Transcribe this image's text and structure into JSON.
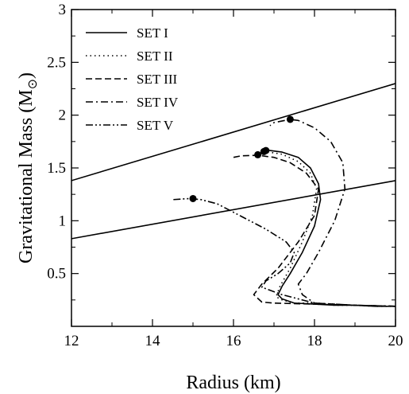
{
  "chart_data": {
    "type": "line",
    "xlabel": "Radius (km)",
    "ylabel_main": "Gravitational Mass (M",
    "ylabel_sub": "⊙",
    "ylabel_close": ")",
    "xlim": [
      12,
      20
    ],
    "ylim": [
      0,
      3
    ],
    "xticks": [
      12,
      14,
      16,
      18,
      20
    ],
    "yticks": [
      0.5,
      1,
      1.5,
      2,
      2.5,
      3
    ],
    "xtick_labels": [
      "12",
      "14",
      "16",
      "18",
      "20"
    ],
    "ytick_labels": [
      "0.5",
      "1",
      "1.5",
      "2",
      "2.5",
      "3"
    ],
    "legend_position": "top-left",
    "series": [
      {
        "name": "SET I",
        "style": "solid",
        "points": [
          [
            20.0,
            0.19
          ],
          [
            19.5,
            0.19
          ],
          [
            19.0,
            0.2
          ],
          [
            18.5,
            0.2
          ],
          [
            18.0,
            0.21
          ],
          [
            17.5,
            0.22
          ],
          [
            17.2,
            0.26
          ],
          [
            17.1,
            0.3
          ],
          [
            17.2,
            0.38
          ],
          [
            17.4,
            0.5
          ],
          [
            17.7,
            0.7
          ],
          [
            18.0,
            0.95
          ],
          [
            18.15,
            1.2
          ],
          [
            18.1,
            1.35
          ],
          [
            17.9,
            1.5
          ],
          [
            17.6,
            1.6
          ],
          [
            17.2,
            1.65
          ],
          [
            16.9,
            1.665
          ],
          [
            16.8,
            1.665
          ]
        ],
        "max_point": [
          16.8,
          1.665
        ]
      },
      {
        "name": "SET II",
        "style": "dotted",
        "points": [
          [
            20.0,
            0.19
          ],
          [
            19.5,
            0.19
          ],
          [
            19.0,
            0.2
          ],
          [
            18.5,
            0.2
          ],
          [
            18.0,
            0.22
          ],
          [
            17.5,
            0.22
          ],
          [
            17.2,
            0.25
          ],
          [
            17.05,
            0.28
          ],
          [
            17.15,
            0.38
          ],
          [
            17.4,
            0.55
          ],
          [
            17.7,
            0.8
          ],
          [
            17.95,
            1.05
          ],
          [
            18.05,
            1.3
          ],
          [
            17.9,
            1.45
          ],
          [
            17.6,
            1.56
          ],
          [
            17.2,
            1.63
          ],
          [
            16.8,
            1.655
          ],
          [
            16.75,
            1.655
          ]
        ],
        "max_point": [
          16.75,
          1.655
        ]
      },
      {
        "name": "SET III",
        "style": "dashed",
        "points": [
          [
            20.0,
            0.19
          ],
          [
            19.0,
            0.2
          ],
          [
            18.0,
            0.21
          ],
          [
            17.0,
            0.22
          ],
          [
            16.7,
            0.23
          ],
          [
            16.5,
            0.3
          ],
          [
            16.7,
            0.4
          ],
          [
            17.1,
            0.55
          ],
          [
            17.6,
            0.8
          ],
          [
            18.0,
            1.05
          ],
          [
            18.1,
            1.3
          ],
          [
            17.8,
            1.45
          ],
          [
            17.4,
            1.55
          ],
          [
            17.0,
            1.6
          ],
          [
            16.6,
            1.62
          ],
          [
            16.2,
            1.615
          ],
          [
            16.0,
            1.6
          ]
        ],
        "max_point": [
          16.6,
          1.625
        ]
      },
      {
        "name": "SET IV",
        "style": "dashdot",
        "points": [
          [
            20.0,
            0.19
          ],
          [
            19.0,
            0.2
          ],
          [
            18.0,
            0.22
          ],
          [
            17.7,
            0.3
          ],
          [
            17.6,
            0.4
          ],
          [
            17.8,
            0.5
          ],
          [
            18.1,
            0.7
          ],
          [
            18.5,
            1.0
          ],
          [
            18.75,
            1.3
          ],
          [
            18.7,
            1.55
          ],
          [
            18.4,
            1.75
          ],
          [
            18.0,
            1.88
          ],
          [
            17.6,
            1.95
          ],
          [
            17.4,
            1.96
          ],
          [
            17.0,
            1.93
          ],
          [
            16.9,
            1.9
          ]
        ],
        "max_point": [
          17.4,
          1.96
        ]
      },
      {
        "name": "SET V",
        "style": "dashdotdot",
        "points": [
          [
            20.0,
            0.19
          ],
          [
            19.0,
            0.2
          ],
          [
            18.0,
            0.22
          ],
          [
            17.2,
            0.3
          ],
          [
            16.7,
            0.37
          ],
          [
            16.8,
            0.43
          ],
          [
            17.1,
            0.5
          ],
          [
            17.4,
            0.6
          ],
          [
            17.5,
            0.7
          ],
          [
            17.3,
            0.8
          ],
          [
            16.8,
            0.92
          ],
          [
            16.2,
            1.04
          ],
          [
            15.6,
            1.16
          ],
          [
            15.2,
            1.2
          ],
          [
            14.9,
            1.21
          ],
          [
            14.5,
            1.2
          ]
        ],
        "max_point": [
          15.0,
          1.21
        ]
      }
    ],
    "reference_lines": [
      {
        "x1": 12,
        "y1": 1.38,
        "x2": 20,
        "y2": 2.3
      },
      {
        "x1": 12,
        "y1": 0.83,
        "x2": 20,
        "y2": 1.38
      }
    ]
  }
}
